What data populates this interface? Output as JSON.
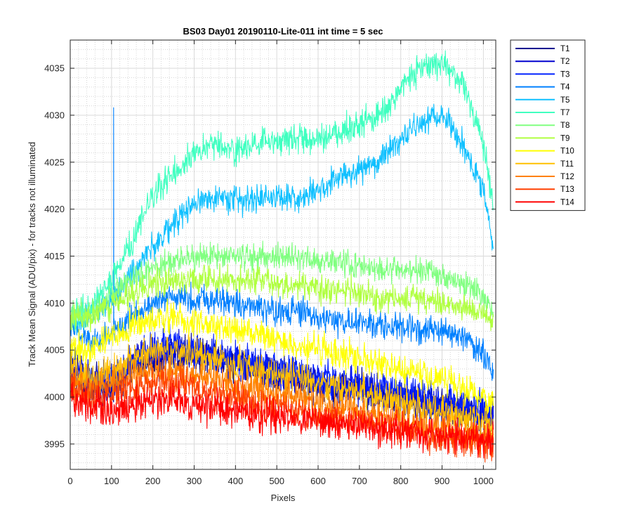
{
  "chart_data": {
    "type": "line",
    "title": "BS03 Day01 20190110-Lite-011 int time = 5 sec",
    "xlabel": "Pixels",
    "ylabel": "Track Mean Signal (ADU/pix) - for tracks not illuminated",
    "xlim": [
      0,
      1030
    ],
    "ylim": [
      3992.3,
      4038.0
    ],
    "xticks": [
      0,
      100,
      200,
      300,
      400,
      500,
      600,
      700,
      800,
      900,
      1000
    ],
    "yticks": [
      3995,
      4000,
      4005,
      4010,
      4015,
      4020,
      4025,
      4030,
      4035
    ],
    "grid": true,
    "minor_grid": true,
    "legend_position": "outside-top-right",
    "x_points": [
      0,
      50,
      100,
      150,
      200,
      250,
      300,
      350,
      400,
      450,
      500,
      550,
      600,
      650,
      700,
      750,
      800,
      850,
      900,
      950,
      1000,
      1024
    ],
    "series": [
      {
        "name": "T1",
        "color": "#00008f",
        "noise": 1.6,
        "values": [
          4003.0,
          4001.5,
          4001.0,
          4003.0,
          4004.0,
          4004.5,
          4004.5,
          4004.0,
          4003.5,
          4003.0,
          4002.5,
          4002.0,
          4001.5,
          4001.0,
          4001.0,
          4000.5,
          4000.0,
          3999.5,
          3999.0,
          3998.5,
          3998.0,
          3997.5
        ]
      },
      {
        "name": "T2",
        "color": "#0000cf",
        "noise": 1.6,
        "values": [
          4003.0,
          4001.5,
          4001.5,
          4003.5,
          4004.5,
          4005.0,
          4004.5,
          4004.0,
          4003.5,
          4003.0,
          4002.5,
          4002.0,
          4001.5,
          4001.0,
          4001.0,
          4000.5,
          4000.0,
          3999.5,
          3999.0,
          3998.5,
          3998.0,
          3997.5
        ]
      },
      {
        "name": "T3",
        "color": "#0020ff",
        "noise": 1.6,
        "values": [
          4003.5,
          4002.0,
          4002.0,
          4004.0,
          4005.0,
          4005.5,
          4005.0,
          4004.5,
          4004.0,
          4003.5,
          4003.0,
          4002.5,
          4002.0,
          4001.5,
          4001.5,
          4001.0,
          4000.5,
          4000.0,
          3999.5,
          3999.0,
          3998.5,
          3998.0
        ]
      },
      {
        "name": "T4",
        "color": "#0080ff",
        "noise": 1.3,
        "spike": [
          105,
          4030.8
        ],
        "values": [
          4007.5,
          4006.0,
          4006.5,
          4009.0,
          4010.0,
          4010.5,
          4010.5,
          4010.5,
          4010.0,
          4009.5,
          4009.0,
          4009.0,
          4008.5,
          4008.0,
          4008.0,
          4007.5,
          4007.5,
          4007.0,
          4007.0,
          4006.5,
          4004.5,
          4002.0
        ]
      },
      {
        "name": "T5",
        "color": "#10c0ff",
        "noise": 1.3,
        "values": [
          4008.0,
          4008.5,
          4010.5,
          4013.0,
          4016.0,
          4018.5,
          4020.5,
          4021.5,
          4021.0,
          4021.0,
          4021.5,
          4021.0,
          4022.0,
          4023.5,
          4024.0,
          4025.5,
          4027.5,
          4029.0,
          4030.0,
          4027.0,
          4022.0,
          4016.0
        ]
      },
      {
        "name": "T7",
        "color": "#40ffc0",
        "noise": 1.3,
        "values": [
          4008.5,
          4009.5,
          4012.5,
          4016.5,
          4021.5,
          4024.0,
          4026.0,
          4027.0,
          4026.0,
          4027.0,
          4027.0,
          4027.5,
          4027.5,
          4028.0,
          4029.0,
          4030.0,
          4033.0,
          4035.0,
          4035.5,
          4033.5,
          4027.0,
          4020.0
        ]
      },
      {
        "name": "T8",
        "color": "#80ff80",
        "noise": 1.2,
        "values": [
          4008.5,
          4009.0,
          4011.0,
          4012.5,
          4013.5,
          4014.5,
          4015.0,
          4015.0,
          4015.0,
          4015.0,
          4015.0,
          4015.0,
          4014.5,
          4014.5,
          4014.0,
          4013.5,
          4013.5,
          4013.5,
          4013.0,
          4012.0,
          4010.5,
          4009.5
        ]
      },
      {
        "name": "T9",
        "color": "#b0ff40",
        "noise": 1.2,
        "values": [
          4008.0,
          4008.5,
          4010.0,
          4011.0,
          4012.0,
          4012.5,
          4012.5,
          4012.5,
          4012.5,
          4012.5,
          4012.0,
          4012.0,
          4011.5,
          4011.5,
          4011.0,
          4010.5,
          4010.5,
          4010.5,
          4010.0,
          4009.5,
          4009.0,
          4008.0
        ]
      },
      {
        "name": "T10",
        "color": "#ffff00",
        "noise": 1.4,
        "values": [
          4005.0,
          4005.0,
          4006.5,
          4007.5,
          4008.0,
          4008.5,
          4008.0,
          4007.5,
          4007.0,
          4006.5,
          4006.0,
          4005.5,
          4005.0,
          4004.5,
          4004.0,
          4003.5,
          4003.0,
          4002.5,
          4002.0,
          4001.0,
          4000.0,
          3999.5
        ]
      },
      {
        "name": "T11",
        "color": "#ffc000",
        "noise": 1.5,
        "values": [
          4003.0,
          4002.0,
          4002.5,
          4004.0,
          4005.0,
          4005.0,
          4004.5,
          4004.0,
          4003.5,
          4003.0,
          4002.5,
          4002.0,
          4001.5,
          4001.0,
          4000.5,
          4000.0,
          3999.5,
          3999.0,
          3998.5,
          3998.0,
          3997.5,
          3997.0
        ]
      },
      {
        "name": "T12",
        "color": "#ff8000",
        "noise": 1.5,
        "values": [
          4002.0,
          4001.0,
          4001.5,
          4002.5,
          4003.0,
          4003.0,
          4002.5,
          4002.0,
          4001.5,
          4001.0,
          4000.5,
          4000.0,
          3999.5,
          3999.0,
          3998.5,
          3998.0,
          3997.5,
          3997.0,
          3996.5,
          3996.0,
          3995.5,
          3995.5
        ]
      },
      {
        "name": "T13",
        "color": "#ff4000",
        "noise": 1.5,
        "values": [
          4001.0,
          4000.0,
          4000.0,
          4001.0,
          4001.5,
          4001.5,
          4001.0,
          4000.5,
          4000.0,
          3999.5,
          3999.0,
          3998.5,
          3998.0,
          3997.5,
          3997.5,
          3997.0,
          3996.5,
          3996.0,
          3995.5,
          3995.5,
          3995.0,
          3995.0
        ]
      },
      {
        "name": "T14",
        "color": "#ff0000",
        "noise": 1.5,
        "values": [
          4000.0,
          3999.0,
          3998.5,
          3999.0,
          3999.5,
          3999.5,
          3999.0,
          3999.0,
          3998.5,
          3998.0,
          3998.0,
          3997.5,
          3997.5,
          3997.0,
          3997.0,
          3996.5,
          3996.5,
          3996.0,
          3996.0,
          3995.5,
          3995.5,
          3995.5
        ]
      }
    ]
  }
}
